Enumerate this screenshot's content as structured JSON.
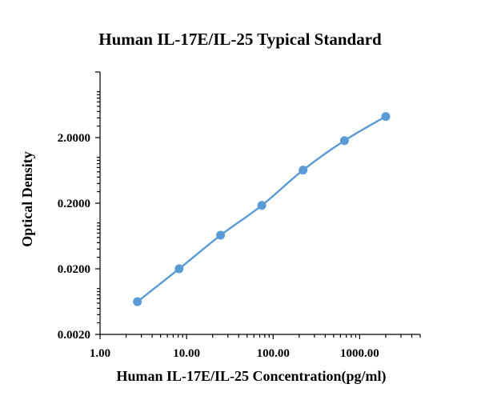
{
  "chart_data": {
    "type": "line",
    "title": "Human IL-17E/IL-25 Typical Standard",
    "xlabel": "Human IL-17E/IL-25  Concentration(pg/ml)",
    "ylabel": "Optical Density",
    "x_scale": "log",
    "y_scale": "log",
    "xlim": [
      1,
      5000
    ],
    "ylim": [
      0.002,
      20
    ],
    "x_ticks": [
      1,
      10,
      100,
      1000
    ],
    "x_tick_labels": [
      "1.00",
      "10.00",
      "100.00",
      "1000.00"
    ],
    "y_ticks": [
      0.002,
      0.02,
      0.2,
      2
    ],
    "y_tick_labels": [
      "0.0020",
      "0.0200",
      "0.2000",
      "2.0000"
    ],
    "grid": false,
    "legend": false,
    "series": [
      {
        "color": "#5b9bd5",
        "x": [
          2.7,
          8.2,
          24.7,
          74,
          222,
          667,
          2000
        ],
        "y": [
          0.0063,
          0.02,
          0.065,
          0.185,
          0.64,
          1.8,
          4.2
        ]
      }
    ]
  }
}
